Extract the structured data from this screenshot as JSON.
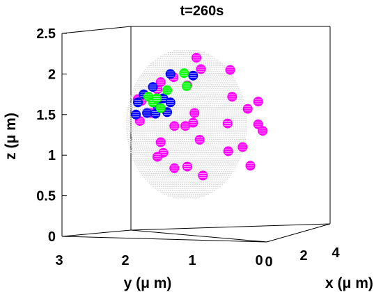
{
  "chart_data": {
    "type": "scatter",
    "title": "t=260s",
    "projection": "3d",
    "xlabel": "x (μ m)",
    "ylabel": "y (μ m)",
    "zlabel": "z (μ m)",
    "xlim": [
      0,
      4
    ],
    "ylim": [
      0,
      3
    ],
    "zlim": [
      0,
      2.5
    ],
    "x_ticks": [
      "0",
      "2",
      "4"
    ],
    "y_ticks": [
      "3",
      "2",
      "1",
      "0"
    ],
    "z_ticks": [
      "0",
      "0.5",
      "1",
      "1.5",
      "2",
      "2.5"
    ],
    "colors": {
      "sphere_surface": "#d6d6d6",
      "magenta": "#ff00ff",
      "blue": "#0000ff",
      "green": "#00ff00"
    },
    "sphere": {
      "center_y": 1.2,
      "center_z": 1.38,
      "radius": 0.93
    },
    "series": [
      {
        "color_key": "magenta",
        "points": [
          [
            1.05,
            2.2
          ],
          [
            0.53,
            2.05
          ],
          [
            0.98,
            2.06
          ],
          [
            1.65,
            1.81
          ],
          [
            1.95,
            1.69
          ],
          [
            1.4,
            1.96
          ],
          [
            1.19,
            1.86
          ],
          [
            0.5,
            1.72
          ],
          [
            0.1,
            1.66
          ],
          [
            1.39,
            1.36
          ],
          [
            1.22,
            1.36
          ],
          [
            0.26,
            1.57
          ],
          [
            1.1,
            1.4
          ],
          [
            0.57,
            1.39
          ],
          [
            0.1,
            1.38
          ],
          [
            0.03,
            1.3
          ],
          [
            0.34,
            1.1
          ],
          [
            1.0,
            1.19
          ],
          [
            1.6,
            1.16
          ],
          [
            0.56,
            1.05
          ],
          [
            1.56,
            1.03
          ],
          [
            1.65,
            0.98
          ],
          [
            0.22,
            0.87
          ],
          [
            1.19,
            0.86
          ],
          [
            0.95,
            0.75
          ],
          [
            1.39,
            0.84
          ],
          [
            1.89,
            1.67
          ],
          [
            1.6,
            1.9
          ],
          [
            1.75,
            1.52
          ],
          [
            1.92,
            1.42
          ],
          [
            1.08,
            1.52
          ]
        ]
      },
      {
        "color_key": "blue",
        "points": [
          [
            1.45,
            2.0
          ],
          [
            1.72,
            1.84
          ],
          [
            1.86,
            1.75
          ],
          [
            1.95,
            1.65
          ],
          [
            1.98,
            1.5
          ],
          [
            1.81,
            1.52
          ],
          [
            1.56,
            1.7
          ],
          [
            1.65,
            1.61
          ],
          [
            1.45,
            1.65
          ],
          [
            1.5,
            1.53
          ],
          [
            1.68,
            1.51
          ],
          [
            1.1,
            1.98
          ]
        ]
      },
      {
        "color_key": "green",
        "points": [
          [
            1.24,
            2.01
          ],
          [
            1.79,
            1.72
          ],
          [
            1.5,
            1.8
          ],
          [
            1.72,
            1.65
          ],
          [
            1.6,
            1.58
          ],
          [
            1.2,
            1.85
          ],
          [
            1.66,
            1.7
          ]
        ]
      }
    ]
  }
}
